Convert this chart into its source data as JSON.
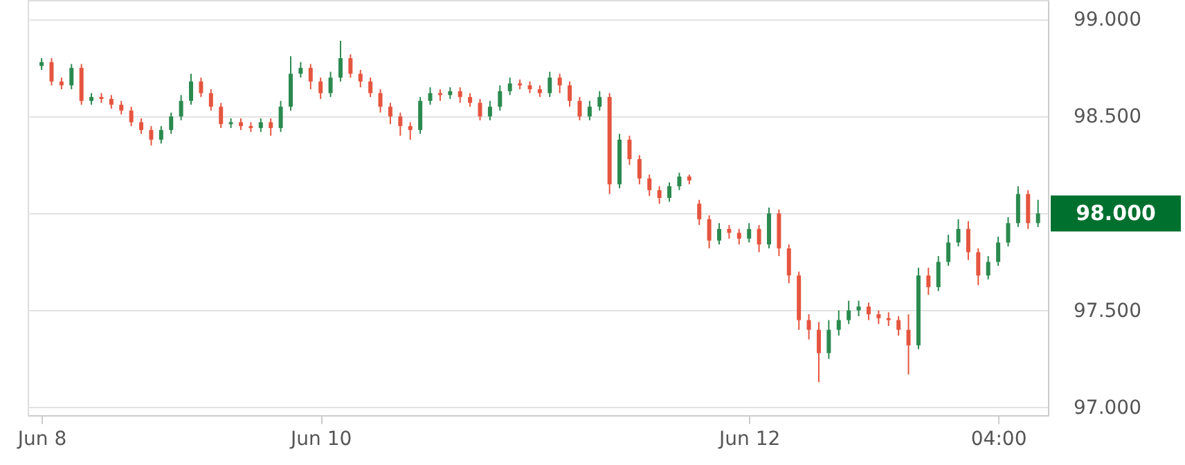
{
  "chart_data": {
    "type": "candlestick",
    "categories": [
      "Jun 8",
      null,
      null,
      null,
      null,
      null,
      null,
      null,
      null,
      null,
      null,
      null,
      null,
      null,
      null,
      null,
      null,
      null,
      null,
      null,
      null,
      null,
      null,
      null,
      null,
      null,
      null,
      null,
      "Jun 10",
      null,
      null,
      null,
      null,
      null,
      null,
      null,
      null,
      null,
      null,
      null,
      null,
      null,
      null,
      null,
      null,
      null,
      null,
      null,
      null,
      null,
      null,
      null,
      null,
      null,
      null,
      null,
      null,
      null,
      null,
      null,
      null,
      null,
      null,
      null,
      null,
      null,
      null,
      null,
      null,
      null,
      null,
      "Jun 12",
      null,
      null,
      null,
      null,
      null,
      null,
      null,
      null,
      null,
      null,
      null,
      null,
      null,
      null,
      null,
      null,
      null,
      null,
      null,
      null,
      null,
      null,
      null,
      null,
      "04:00",
      null,
      null,
      null,
      null
    ],
    "ohlc": [
      [
        98.76,
        98.8,
        98.74,
        98.78
      ],
      [
        98.78,
        98.8,
        98.66,
        98.68
      ],
      [
        98.68,
        98.7,
        98.64,
        98.66
      ],
      [
        98.66,
        98.77,
        98.64,
        98.75
      ],
      [
        98.75,
        98.77,
        98.56,
        98.58
      ],
      [
        98.58,
        98.62,
        98.56,
        98.6
      ],
      [
        98.6,
        98.62,
        98.57,
        98.59
      ],
      [
        98.59,
        98.61,
        98.54,
        98.56
      ],
      [
        98.56,
        98.58,
        98.51,
        98.53
      ],
      [
        98.53,
        98.55,
        98.45,
        98.47
      ],
      [
        98.47,
        98.49,
        98.41,
        98.43
      ],
      [
        98.43,
        98.45,
        98.35,
        98.38
      ],
      [
        98.38,
        98.45,
        98.36,
        98.43
      ],
      [
        98.43,
        98.52,
        98.41,
        98.5
      ],
      [
        98.5,
        98.61,
        98.48,
        98.58
      ],
      [
        98.58,
        98.72,
        98.56,
        98.68
      ],
      [
        98.68,
        98.7,
        98.6,
        98.62
      ],
      [
        98.62,
        98.64,
        98.53,
        98.55
      ],
      [
        98.55,
        98.57,
        98.44,
        98.46
      ],
      [
        98.46,
        98.49,
        98.44,
        98.47
      ],
      [
        98.47,
        98.49,
        98.43,
        98.45
      ],
      [
        98.45,
        98.47,
        98.42,
        98.44
      ],
      [
        98.44,
        98.49,
        98.42,
        98.47
      ],
      [
        98.47,
        98.49,
        98.4,
        98.44
      ],
      [
        98.44,
        98.58,
        98.42,
        98.55
      ],
      [
        98.55,
        98.81,
        98.53,
        98.72
      ],
      [
        98.72,
        98.78,
        98.7,
        98.75
      ],
      [
        98.75,
        98.77,
        98.64,
        98.68
      ],
      [
        98.68,
        98.7,
        98.59,
        98.62
      ],
      [
        98.62,
        98.73,
        98.6,
        98.7
      ],
      [
        98.7,
        98.89,
        98.68,
        98.8
      ],
      [
        98.8,
        98.82,
        98.7,
        98.72
      ],
      [
        98.72,
        98.74,
        98.65,
        98.68
      ],
      [
        98.68,
        98.7,
        98.6,
        98.62
      ],
      [
        98.62,
        98.64,
        98.52,
        98.55
      ],
      [
        98.55,
        98.57,
        98.46,
        98.5
      ],
      [
        98.5,
        98.52,
        98.4,
        98.45
      ],
      [
        98.45,
        98.47,
        98.38,
        98.43
      ],
      [
        98.43,
        98.6,
        98.41,
        98.58
      ],
      [
        98.58,
        98.65,
        98.56,
        98.62
      ],
      [
        98.62,
        98.64,
        98.58,
        98.61
      ],
      [
        98.61,
        98.65,
        98.59,
        98.63
      ],
      [
        98.63,
        98.65,
        98.57,
        98.6
      ],
      [
        98.6,
        98.62,
        98.55,
        98.57
      ],
      [
        98.57,
        98.59,
        98.48,
        98.5
      ],
      [
        98.5,
        98.58,
        98.48,
        98.55
      ],
      [
        98.55,
        98.66,
        98.53,
        98.63
      ],
      [
        98.63,
        98.7,
        98.61,
        98.67
      ],
      [
        98.67,
        98.69,
        98.64,
        98.66
      ],
      [
        98.66,
        98.68,
        98.62,
        98.64
      ],
      [
        98.64,
        98.66,
        98.6,
        98.62
      ],
      [
        98.62,
        98.73,
        98.6,
        98.7
      ],
      [
        98.7,
        98.72,
        98.62,
        98.66
      ],
      [
        98.66,
        98.68,
        98.55,
        98.58
      ],
      [
        98.58,
        98.6,
        98.48,
        98.5
      ],
      [
        98.5,
        98.58,
        98.48,
        98.55
      ],
      [
        98.55,
        98.63,
        98.53,
        98.6
      ],
      [
        98.6,
        98.62,
        98.1,
        98.15
      ],
      [
        98.15,
        98.41,
        98.13,
        98.38
      ],
      [
        98.38,
        98.4,
        98.25,
        98.28
      ],
      [
        98.28,
        98.3,
        98.15,
        98.18
      ],
      [
        98.18,
        98.2,
        98.09,
        98.12
      ],
      [
        98.12,
        98.14,
        98.05,
        98.08
      ],
      [
        98.08,
        98.16,
        98.06,
        98.14
      ],
      [
        98.14,
        98.21,
        98.12,
        98.19
      ],
      [
        98.19,
        98.2,
        98.15,
        98.17
      ],
      [
        98.05,
        98.07,
        97.94,
        97.97
      ],
      [
        97.97,
        97.99,
        97.82,
        97.86
      ],
      [
        97.86,
        97.95,
        97.84,
        97.92
      ],
      [
        97.92,
        97.94,
        97.87,
        97.9
      ],
      [
        97.9,
        97.92,
        97.84,
        97.87
      ],
      [
        97.87,
        97.95,
        97.85,
        97.92
      ],
      [
        97.92,
        97.94,
        97.8,
        97.84
      ],
      [
        97.84,
        98.03,
        97.82,
        98.0
      ],
      [
        98.0,
        98.02,
        97.78,
        97.82
      ],
      [
        97.82,
        97.84,
        97.64,
        97.68
      ],
      [
        97.68,
        97.7,
        97.4,
        97.45
      ],
      [
        97.45,
        97.48,
        97.35,
        97.4
      ],
      [
        97.4,
        97.44,
        97.13,
        97.28
      ],
      [
        97.28,
        97.45,
        97.25,
        97.4
      ],
      [
        97.4,
        97.5,
        97.37,
        97.45
      ],
      [
        97.45,
        97.55,
        97.43,
        97.5
      ],
      [
        97.5,
        97.55,
        97.47,
        97.52
      ],
      [
        97.52,
        97.54,
        97.45,
        97.48
      ],
      [
        97.48,
        97.5,
        97.43,
        97.46
      ],
      [
        97.46,
        97.49,
        97.42,
        97.45
      ],
      [
        97.45,
        97.47,
        97.37,
        97.4
      ],
      [
        97.4,
        97.48,
        97.17,
        97.32
      ],
      [
        97.32,
        97.72,
        97.3,
        97.68
      ],
      [
        97.68,
        97.72,
        97.58,
        97.62
      ],
      [
        97.62,
        97.78,
        97.6,
        97.75
      ],
      [
        97.75,
        97.89,
        97.73,
        97.85
      ],
      [
        97.85,
        97.97,
        97.83,
        97.92
      ],
      [
        97.92,
        97.96,
        97.76,
        97.8
      ],
      [
        97.8,
        97.82,
        97.63,
        97.68
      ],
      [
        97.68,
        97.78,
        97.66,
        97.75
      ],
      [
        97.75,
        97.88,
        97.73,
        97.85
      ],
      [
        97.85,
        97.98,
        97.83,
        97.95
      ],
      [
        97.95,
        98.14,
        97.93,
        98.1
      ],
      [
        98.1,
        98.12,
        97.92,
        97.95
      ],
      [
        97.95,
        98.07,
        97.93,
        98.0
      ]
    ],
    "ylim": [
      96.96,
      99.1
    ],
    "yticks": [
      {
        "value": 97,
        "label": "97.000"
      },
      {
        "value": 97.5,
        "label": "97.500"
      },
      {
        "value": 98,
        "label": null
      },
      {
        "value": 98.5,
        "label": "98.500"
      },
      {
        "value": 99,
        "label": "99.000"
      }
    ],
    "grid": "y",
    "annotations": [
      "98.000"
    ]
  }
}
